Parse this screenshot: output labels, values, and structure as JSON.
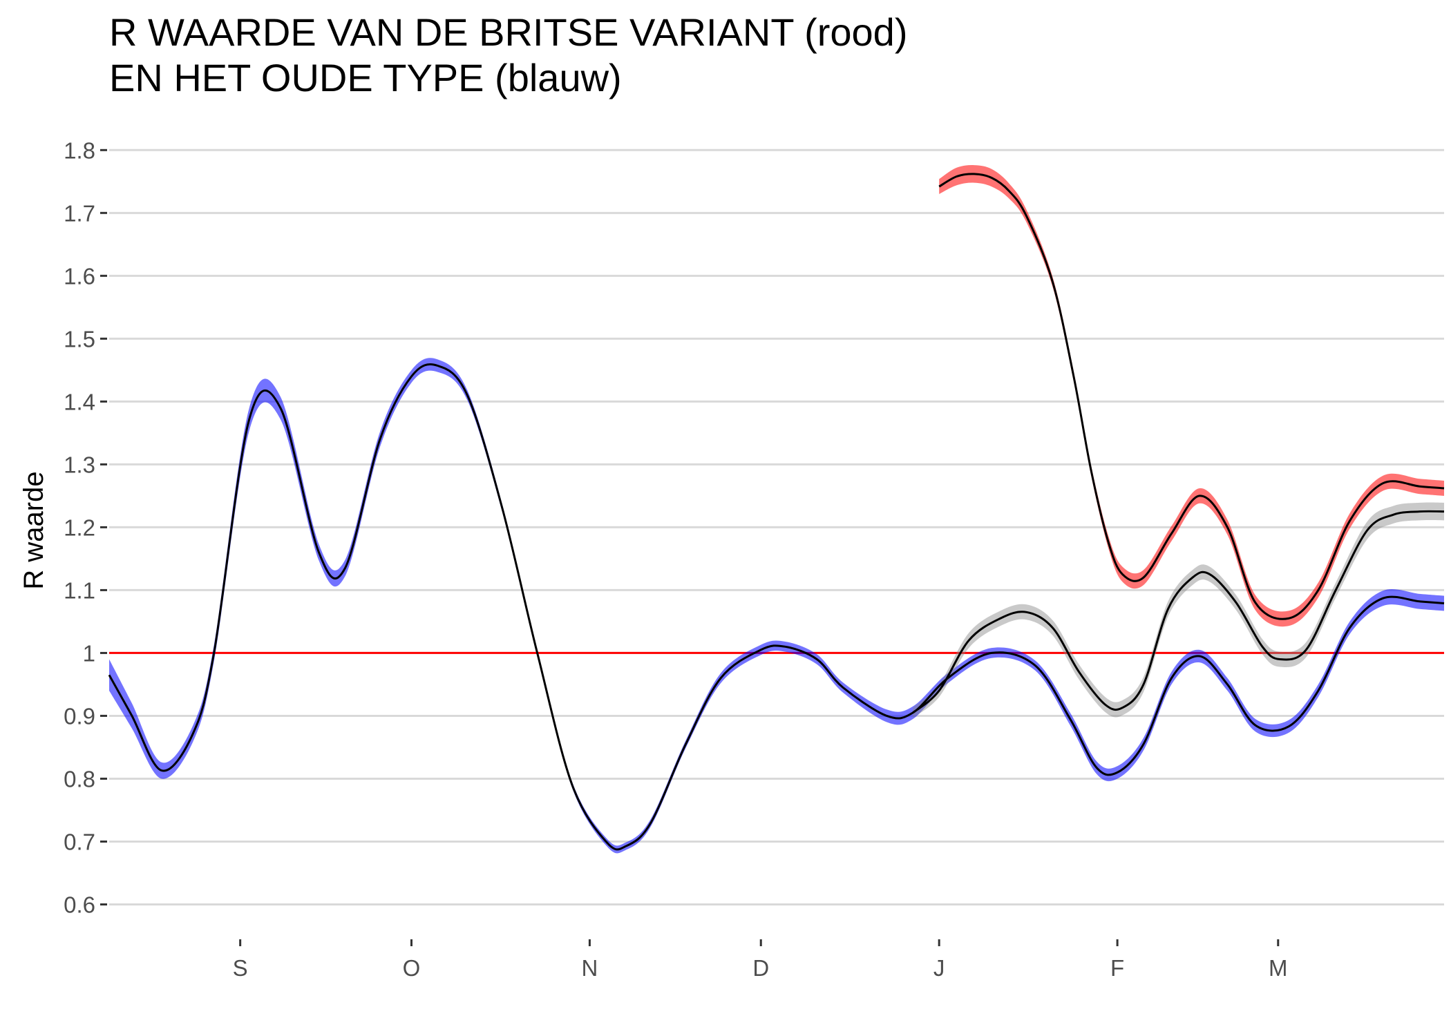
{
  "chart_data": {
    "type": "line",
    "title": "R WAARDE VAN DE BRITSE VARIANT (rood)",
    "subtitle": "EN HET OUDE TYPE (blauw)",
    "xlabel": "",
    "ylabel": "R waarde",
    "ylim": [
      0.55,
      1.83
    ],
    "xlim": [
      0,
      7.64
    ],
    "y_ticks": [
      {
        "v": 0.6,
        "label": "0.6"
      },
      {
        "v": 0.7,
        "label": "0.7"
      },
      {
        "v": 0.8,
        "label": "0.8"
      },
      {
        "v": 0.9,
        "label": "0.9"
      },
      {
        "v": 1.0,
        "label": "1"
      },
      {
        "v": 1.1,
        "label": "1.1"
      },
      {
        "v": 1.2,
        "label": "1.2"
      },
      {
        "v": 1.3,
        "label": "1.3"
      },
      {
        "v": 1.4,
        "label": "1.4"
      },
      {
        "v": 1.5,
        "label": "1.5"
      },
      {
        "v": 1.6,
        "label": "1.6"
      },
      {
        "v": 1.7,
        "label": "1.7"
      },
      {
        "v": 1.8,
        "label": "1.8"
      }
    ],
    "x_ticks": [
      {
        "v": 0.75,
        "label": "S"
      },
      {
        "v": 1.73,
        "label": "O"
      },
      {
        "v": 2.75,
        "label": "N"
      },
      {
        "v": 3.73,
        "label": "D"
      },
      {
        "v": 4.75,
        "label": "J"
      },
      {
        "v": 5.77,
        "label": "F"
      },
      {
        "v": 6.69,
        "label": "M"
      }
    ],
    "grid": true,
    "reference_line": {
      "y": 1.0,
      "color": "#ff0000"
    },
    "series": [
      {
        "color": "#0000ff",
        "x": [
          0,
          0.13,
          0.3,
          0.48,
          0.6,
          0.8,
          0.98,
          1.2,
          1.35,
          1.55,
          1.73,
          1.88,
          2.05,
          2.25,
          2.45,
          2.65,
          2.85,
          2.96,
          3.1,
          3.3,
          3.5,
          3.73,
          3.87,
          4.05,
          4.2,
          4.45,
          4.6,
          4.8,
          5.05,
          5.3,
          5.5,
          5.65,
          5.77,
          5.92,
          6.08,
          6.24,
          6.4,
          6.56,
          6.75,
          6.92,
          7.1,
          7.29,
          7.5,
          7.64
        ],
        "values": [
          0.965,
          0.9,
          0.813,
          0.872,
          1.0,
          1.37,
          1.39,
          1.16,
          1.135,
          1.34,
          1.44,
          1.457,
          1.41,
          1.23,
          1.0,
          0.79,
          0.698,
          0.693,
          0.73,
          0.855,
          0.96,
          1.005,
          1.01,
          0.99,
          0.945,
          0.9,
          0.905,
          0.96,
          1.0,
          0.98,
          0.895,
          0.818,
          0.81,
          0.855,
          0.96,
          0.995,
          0.95,
          0.885,
          0.883,
          0.94,
          1.04,
          1.087,
          1.082,
          1.079
        ],
        "band": [
          0.025,
          0.02,
          0.013,
          0.013,
          0.013,
          0.018,
          0.018,
          0.013,
          0.013,
          0.012,
          0.01,
          0.01,
          0.008,
          0.006,
          0.005,
          0.005,
          0.006,
          0.006,
          0.006,
          0.006,
          0.008,
          0.008,
          0.008,
          0.008,
          0.008,
          0.01,
          0.01,
          0.008,
          0.008,
          0.008,
          0.01,
          0.01,
          0.01,
          0.01,
          0.01,
          0.01,
          0.01,
          0.01,
          0.01,
          0.01,
          0.01,
          0.012,
          0.012,
          0.012
        ]
      },
      {
        "color": "#ff0000",
        "x": [
          4.75,
          4.85,
          4.95,
          5.05,
          5.15,
          5.25,
          5.4,
          5.52,
          5.62,
          5.72,
          5.8,
          5.92,
          6.08,
          6.24,
          6.4,
          6.56,
          6.75,
          6.92,
          7.1,
          7.29,
          7.5,
          7.64
        ],
        "values": [
          1.742,
          1.758,
          1.762,
          1.756,
          1.735,
          1.695,
          1.59,
          1.44,
          1.29,
          1.175,
          1.125,
          1.12,
          1.19,
          1.25,
          1.2,
          1.08,
          1.055,
          1.1,
          1.21,
          1.27,
          1.265,
          1.262
        ],
        "band": [
          0.012,
          0.014,
          0.014,
          0.014,
          0.012,
          0.01,
          0.008,
          0.008,
          0.008,
          0.01,
          0.012,
          0.012,
          0.012,
          0.012,
          0.012,
          0.012,
          0.012,
          0.012,
          0.012,
          0.012,
          0.012,
          0.012
        ]
      },
      {
        "color": "#888888",
        "x": [
          4.6,
          4.75,
          4.92,
          5.1,
          5.25,
          5.4,
          5.55,
          5.7,
          5.8,
          5.92,
          6.06,
          6.2,
          6.3,
          6.45,
          6.6,
          6.7,
          6.85,
          7.02,
          7.2,
          7.35,
          7.5,
          7.64
        ],
        "values": [
          0.905,
          0.94,
          1.02,
          1.055,
          1.065,
          1.04,
          0.97,
          0.918,
          0.913,
          0.95,
          1.07,
          1.12,
          1.125,
          1.08,
          1.01,
          0.99,
          1.005,
          1.1,
          1.195,
          1.22,
          1.225,
          1.225
        ],
        "band": [
          0.008,
          0.01,
          0.012,
          0.012,
          0.012,
          0.012,
          0.012,
          0.012,
          0.012,
          0.012,
          0.012,
          0.012,
          0.012,
          0.012,
          0.012,
          0.012,
          0.012,
          0.012,
          0.014,
          0.014,
          0.014,
          0.014
        ]
      }
    ]
  }
}
